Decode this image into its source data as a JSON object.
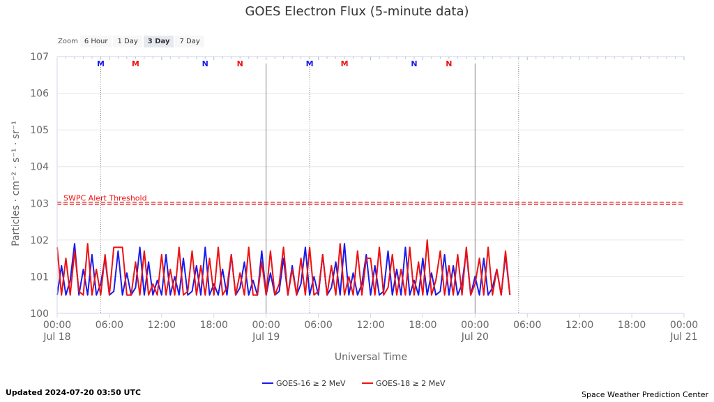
{
  "zoom": {
    "label": "Zoom",
    "buttons": [
      "6 Hour",
      "1 Day",
      "3 Day",
      "7 Day"
    ],
    "selected": "3 Day"
  },
  "footer": {
    "updated": "Updated 2024-07-20 03:50 UTC",
    "credit": "Space Weather Prediction Center"
  },
  "chart_data": {
    "type": "line",
    "title": "GOES Electron Flux (5-minute data)",
    "xlabel": "Universal Time",
    "ylabel": "Particles · cm⁻² · s⁻¹ · sr⁻¹",
    "yscale": "log",
    "ylim": [
      1,
      10000000
    ],
    "yticks": [
      {
        "value": 1,
        "base": "10",
        "exp": "0"
      },
      {
        "value": 10,
        "base": "10",
        "exp": "1"
      },
      {
        "value": 100,
        "base": "10",
        "exp": "2"
      },
      {
        "value": 1000,
        "base": "10",
        "exp": "3"
      },
      {
        "value": 10000,
        "base": "10",
        "exp": "4"
      },
      {
        "value": 100000,
        "base": "10",
        "exp": "5"
      },
      {
        "value": 1000000,
        "base": "10",
        "exp": "6"
      },
      {
        "value": 10000000,
        "base": "10",
        "exp": "7"
      }
    ],
    "xlim": [
      "2024-07-18 00:00",
      "2024-07-21 00:00"
    ],
    "xticks": [
      {
        "time": "2024-07-18 00:00",
        "label": "00:00",
        "date": "Jul 18"
      },
      {
        "time": "2024-07-18 06:00",
        "label": "06:00",
        "date": ""
      },
      {
        "time": "2024-07-18 12:00",
        "label": "12:00",
        "date": ""
      },
      {
        "time": "2024-07-18 18:00",
        "label": "18:00",
        "date": ""
      },
      {
        "time": "2024-07-19 00:00",
        "label": "00:00",
        "date": "Jul 19"
      },
      {
        "time": "2024-07-19 06:00",
        "label": "06:00",
        "date": ""
      },
      {
        "time": "2024-07-19 12:00",
        "label": "12:00",
        "date": ""
      },
      {
        "time": "2024-07-19 18:00",
        "label": "18:00",
        "date": ""
      },
      {
        "time": "2024-07-20 00:00",
        "label": "00:00",
        "date": "Jul 20"
      },
      {
        "time": "2024-07-20 06:00",
        "label": "06:00",
        "date": ""
      },
      {
        "time": "2024-07-20 12:00",
        "label": "12:00",
        "date": ""
      },
      {
        "time": "2024-07-20 18:00",
        "label": "18:00",
        "date": ""
      },
      {
        "time": "2024-07-21 00:00",
        "label": "00:00",
        "date": "Jul 21"
      }
    ],
    "day_lines": [
      "2024-07-19 00:00",
      "2024-07-20 00:00"
    ],
    "now_lines": [
      "2024-07-18 05:00",
      "2024-07-19 05:00",
      "2024-07-20 05:00"
    ],
    "threshold": {
      "label": "SWPC Alert Threshold",
      "value": 1000
    },
    "markers": [
      {
        "letter": "M",
        "time": "2024-07-18 05:00",
        "color": "#1a1aee"
      },
      {
        "letter": "M",
        "time": "2024-07-18 09:00",
        "color": "#ee1111"
      },
      {
        "letter": "N",
        "time": "2024-07-18 17:00",
        "color": "#1a1aee"
      },
      {
        "letter": "N",
        "time": "2024-07-18 21:00",
        "color": "#ee1111"
      },
      {
        "letter": "M",
        "time": "2024-07-19 05:00",
        "color": "#1a1aee"
      },
      {
        "letter": "M",
        "time": "2024-07-19 09:00",
        "color": "#ee1111"
      },
      {
        "letter": "N",
        "time": "2024-07-19 17:00",
        "color": "#1a1aee"
      },
      {
        "letter": "N",
        "time": "2024-07-19 21:00",
        "color": "#ee1111"
      }
    ],
    "series": [
      {
        "name": "GOES-16 ≥ 2 MeV",
        "color": "#1a1aee",
        "start": "2024-07-18 00:00",
        "end": "2024-07-20 04:00",
        "step_hours": 0.5,
        "log10_values": [
          0.5,
          1.3,
          0.5,
          0.9,
          1.9,
          0.5,
          1.2,
          0.5,
          1.6,
          0.5,
          0.8,
          1.5,
          0.5,
          0.6,
          1.7,
          0.5,
          1.1,
          0.5,
          0.7,
          1.8,
          0.5,
          1.4,
          0.5,
          0.9,
          0.5,
          1.6,
          0.5,
          1.0,
          0.5,
          1.5,
          0.5,
          0.6,
          1.3,
          0.5,
          1.8,
          0.5,
          0.8,
          0.5,
          1.2,
          0.5,
          1.6,
          0.5,
          0.7,
          1.4,
          0.5,
          0.9,
          0.5,
          1.7,
          0.5,
          1.1,
          0.5,
          0.6,
          1.5,
          0.5,
          1.3,
          0.5,
          0.8,
          1.8,
          0.5,
          1.0,
          0.5,
          1.6,
          0.5,
          0.7,
          1.4,
          0.5,
          1.9,
          0.5,
          1.1,
          0.5,
          0.8,
          1.6,
          0.5,
          1.3,
          0.5,
          0.6,
          1.7,
          0.5,
          1.2,
          0.5,
          1.8,
          0.5,
          0.9,
          0.5,
          1.5,
          0.5,
          1.1,
          0.5,
          0.6,
          1.6,
          0.5,
          1.3,
          0.5,
          0.8,
          1.7,
          0.5,
          1.0,
          0.5,
          1.5,
          0.5,
          0.7,
          1.2,
          0.5,
          1.6,
          0.5
        ]
      },
      {
        "name": "GOES-18 ≥ 2 MeV",
        "color": "#ee1111",
        "start": "2024-07-18 00:00",
        "end": "2024-07-20 04:00",
        "step_hours": 0.5,
        "log10_values": [
          1.8,
          0.5,
          1.5,
          0.5,
          1.7,
          0.6,
          0.5,
          1.9,
          0.5,
          1.2,
          0.5,
          1.6,
          0.5,
          1.8,
          1.8,
          1.8,
          0.5,
          0.5,
          1.4,
          0.5,
          1.7,
          0.5,
          0.8,
          0.5,
          1.6,
          0.5,
          1.2,
          0.5,
          1.8,
          0.5,
          0.6,
          1.7,
          0.5,
          1.3,
          0.5,
          1.5,
          0.5,
          1.8,
          0.5,
          0.7,
          1.6,
          0.5,
          1.1,
          0.5,
          1.8,
          0.5,
          0.5,
          1.4,
          0.5,
          1.7,
          0.5,
          0.8,
          1.8,
          0.5,
          1.2,
          0.5,
          1.5,
          0.5,
          1.8,
          0.5,
          0.6,
          1.6,
          0.5,
          1.3,
          0.5,
          1.9,
          0.5,
          1.0,
          0.5,
          1.7,
          0.5,
          1.5,
          1.5,
          0.5,
          1.8,
          0.5,
          0.7,
          1.6,
          0.5,
          1.2,
          0.5,
          1.8,
          0.5,
          1.4,
          0.5,
          2.0,
          0.5,
          0.9,
          1.7,
          0.5,
          1.3,
          0.5,
          1.6,
          0.5,
          1.8,
          0.5,
          0.8,
          1.5,
          0.5,
          1.8,
          0.5,
          1.2,
          0.5,
          1.7,
          0.5
        ]
      }
    ],
    "legend": {
      "position": "bottom-center"
    },
    "grid": true
  }
}
